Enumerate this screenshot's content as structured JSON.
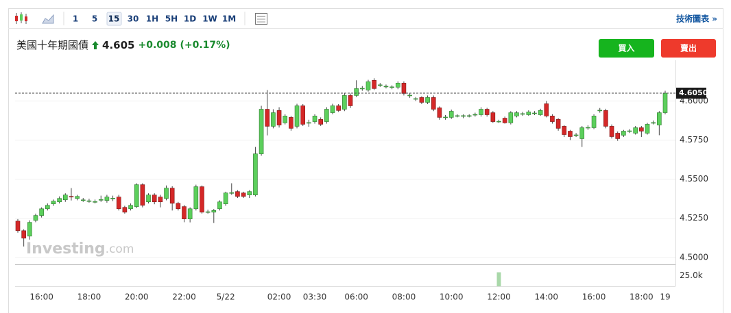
{
  "header": {
    "title": "美國十年期國債",
    "price": 4.605,
    "change": "+0.008",
    "change_pct": "(+0.17%)"
  },
  "toolbar": {
    "intervals": [
      "1",
      "5",
      "15",
      "30",
      "1H",
      "5H",
      "1D",
      "1W",
      "1M"
    ],
    "selected": 2,
    "link": "技術圖表 »"
  },
  "buttons": {
    "buy": "買入",
    "sell": "賣出"
  },
  "chart_data": {
    "type": "candlestick",
    "watermark": {
      "brand": "Investing",
      "suffix": ".com"
    },
    "categories": [
      null,
      null,
      null,
      null,
      "16:00",
      null,
      null,
      null,
      null,
      null,
      null,
      null,
      "18:00",
      null,
      null,
      null,
      null,
      null,
      null,
      null,
      "20:00",
      null,
      null,
      null,
      null,
      null,
      null,
      null,
      "22:00",
      null,
      null,
      null,
      null,
      null,
      null,
      "5/22",
      null,
      null,
      null,
      null,
      null,
      null,
      null,
      null,
      "02:00",
      null,
      null,
      null,
      null,
      null,
      "03:30",
      null,
      null,
      null,
      null,
      null,
      null,
      "06:00",
      null,
      null,
      null,
      null,
      null,
      null,
      null,
      "08:00",
      null,
      null,
      null,
      null,
      null,
      null,
      null,
      "10:00",
      null,
      null,
      null,
      null,
      null,
      null,
      null,
      "12:00",
      null,
      null,
      null,
      null,
      null,
      null,
      null,
      "14:00",
      null,
      null,
      null,
      null,
      null,
      null,
      null,
      "16:00",
      null,
      null,
      null,
      null,
      null,
      null,
      null,
      "18:00",
      null,
      null,
      null,
      "19"
    ],
    "open": [
      4.5232,
      4.5171,
      4.5136,
      4.5237,
      4.5268,
      4.5311,
      4.5342,
      4.5355,
      4.5368,
      4.539,
      4.5377,
      4.5364,
      4.536,
      4.5355,
      4.5368,
      4.5364,
      4.5377,
      4.5386,
      4.532,
      4.5311,
      4.5325,
      4.5465,
      4.5355,
      4.5399,
      4.5386,
      4.5377,
      4.5443,
      4.5346,
      4.5325,
      4.5246,
      4.5311,
      4.5452,
      4.5289,
      4.5289,
      4.5311,
      4.5342,
      4.5412,
      4.5421,
      4.5412,
      4.5399,
      4.5399,
      4.5662,
      4.5947,
      4.5838,
      4.5939,
      4.586,
      4.5895,
      4.5838,
      4.5969,
      4.586,
      4.5868,
      4.5882,
      4.5868,
      4.5925,
      4.5969,
      4.5947,
      4.6035,
      4.6035,
      4.6079,
      4.607,
      4.6132,
      4.6101,
      4.6092,
      4.6088,
      4.6088,
      4.6114,
      4.6035,
      4.6013,
      4.6022,
      4.5991,
      4.6022,
      4.5956,
      4.5895,
      4.5895,
      4.5904,
      4.5904,
      4.5904,
      4.5912,
      4.5912,
      4.5947,
      4.5925,
      4.5868,
      4.589,
      4.586,
      4.5904,
      4.5917,
      4.5912,
      4.5921,
      4.5912,
      4.5982,
      4.5904,
      4.5882,
      4.5838,
      4.5807,
      4.5781,
      4.5759,
      4.5829,
      4.5829,
      4.5939,
      4.5939,
      4.5838,
      4.5794,
      4.5781,
      4.5807,
      4.5794,
      4.5829,
      4.5794,
      4.586,
      4.5846,
      4.5925
    ],
    "high": [
      4.5245,
      4.518,
      4.5237,
      4.528,
      4.532,
      4.5345,
      4.537,
      4.539,
      4.541,
      4.5443,
      4.54,
      4.538,
      4.5375,
      4.537,
      4.5395,
      4.54,
      4.5395,
      4.54,
      4.533,
      4.5345,
      4.5474,
      4.5474,
      4.541,
      4.541,
      4.54,
      4.546,
      4.5455,
      4.5355,
      4.5335,
      4.532,
      4.5465,
      4.546,
      4.5305,
      4.531,
      4.5365,
      4.542,
      4.5474,
      4.543,
      4.542,
      4.543,
      4.5706,
      4.5969,
      4.607,
      4.5947,
      4.596,
      4.5915,
      4.5905,
      4.5982,
      4.598,
      4.588,
      4.5915,
      4.5895,
      4.596,
      4.5982,
      4.598,
      4.6048,
      4.6048,
      4.6132,
      4.6095,
      4.6135,
      4.6145,
      4.6115,
      4.6105,
      4.61,
      4.6125,
      4.6125,
      4.605,
      4.6025,
      4.603,
      4.6035,
      4.6035,
      4.5965,
      4.591,
      4.5945,
      4.5915,
      4.5915,
      4.5915,
      4.5925,
      4.596,
      4.5956,
      4.5935,
      4.588,
      4.59,
      4.5935,
      4.5935,
      4.593,
      4.594,
      4.5935,
      4.595,
      4.6,
      4.5915,
      4.589,
      4.5845,
      4.5815,
      4.5795,
      4.584,
      4.5845,
      4.5915,
      4.5955,
      4.595,
      4.585,
      4.5805,
      4.5815,
      4.582,
      4.584,
      4.584,
      4.586,
      4.5875,
      4.5935,
      4.6065
    ],
    "low": [
      4.5158,
      4.507,
      4.5114,
      4.5225,
      4.5255,
      4.53,
      4.533,
      4.5345,
      4.5355,
      4.5364,
      4.5365,
      4.5355,
      4.535,
      4.5345,
      4.5355,
      4.535,
      4.536,
      4.53,
      4.528,
      4.53,
      4.5315,
      4.532,
      4.5345,
      4.534,
      4.532,
      4.5365,
      4.53,
      4.53,
      4.5225,
      4.5224,
      4.53,
      4.528,
      4.528,
      4.522,
      4.53,
      4.533,
      4.54,
      4.538,
      4.538,
      4.538,
      4.539,
      4.565,
      4.578,
      4.5825,
      4.583,
      4.585,
      4.581,
      4.5825,
      4.584,
      4.5835,
      4.5855,
      4.584,
      4.5855,
      4.5915,
      4.593,
      4.5935,
      4.5955,
      4.6025,
      4.6065,
      4.606,
      4.607,
      4.609,
      4.608,
      4.6075,
      4.6075,
      4.6035,
      4.602,
      4.6,
      4.598,
      4.598,
      4.5935,
      4.588,
      4.588,
      4.5885,
      4.5895,
      4.589,
      4.5895,
      4.59,
      4.59,
      4.59,
      4.586,
      4.586,
      4.5855,
      4.585,
      4.5895,
      4.5905,
      4.5905,
      4.591,
      4.5905,
      4.5895,
      4.5855,
      4.581,
      4.577,
      4.575,
      4.577,
      4.5706,
      4.5815,
      4.582,
      4.5925,
      4.5825,
      4.576,
      4.5745,
      4.577,
      4.5795,
      4.5785,
      4.577,
      4.5785,
      4.585,
      4.5781,
      4.5915
    ],
    "close": [
      4.5171,
      4.5123,
      4.5224,
      4.5268,
      4.5311,
      4.5333,
      4.536,
      4.5377,
      4.5399,
      4.5386,
      4.539,
      4.5368,
      4.5362,
      4.5357,
      4.537,
      4.5386,
      4.5379,
      4.5311,
      4.5289,
      4.5333,
      4.5465,
      4.5333,
      4.5399,
      4.5355,
      4.5355,
      4.5443,
      4.5346,
      4.5311,
      4.5246,
      4.5311,
      4.5452,
      4.5289,
      4.5292,
      4.53,
      4.5355,
      4.5412,
      4.5414,
      4.539,
      4.539,
      4.5421,
      4.5662,
      4.5947,
      4.5838,
      4.5925,
      4.5846,
      4.5904,
      4.5825,
      4.5969,
      4.5851,
      4.5862,
      4.5904,
      4.5851,
      4.5947,
      4.5969,
      4.5939,
      4.6035,
      4.5969,
      4.6079,
      4.6081,
      4.6123,
      4.6079,
      4.6103,
      4.6094,
      4.609,
      4.6114,
      4.6048,
      4.6037,
      4.6015,
      4.5991,
      4.6022,
      4.5947,
      4.5895,
      4.5897,
      4.5934,
      4.5906,
      4.5906,
      4.5906,
      4.5914,
      4.5947,
      4.5912,
      4.5868,
      4.587,
      4.586,
      4.5925,
      4.5925,
      4.5919,
      4.593,
      4.5923,
      4.5939,
      4.5904,
      4.5868,
      4.5825,
      4.5785,
      4.5772,
      4.5783,
      4.5829,
      4.5831,
      4.5904,
      4.5941,
      4.5838,
      4.5772,
      4.5759,
      4.5807,
      4.5809,
      4.5829,
      4.5807,
      4.5851,
      4.5862,
      4.5925,
      4.605
    ],
    "up_color": "#5ccf5c",
    "down_color": "#d42828",
    "ylim": [
      4.496,
      4.626
    ],
    "yticks": [
      {
        "value": 4.5,
        "label": "4.5000"
      },
      {
        "value": 4.525,
        "label": "4.5250"
      },
      {
        "value": 4.55,
        "label": "4.5500"
      },
      {
        "value": 4.575,
        "label": "4.5750"
      },
      {
        "value": 4.6,
        "label": "4.6000"
      }
    ],
    "grid": true,
    "last_price": {
      "value": 4.605,
      "label": "4.6050"
    },
    "volume": {
      "color": "#a9d8a9",
      "ylim": [
        0,
        50000
      ],
      "yticks": [
        {
          "value": 25000,
          "label": "25.0k"
        }
      ],
      "values": [
        null,
        null,
        null,
        null,
        null,
        null,
        null,
        null,
        null,
        null,
        null,
        null,
        null,
        null,
        null,
        null,
        null,
        null,
        null,
        null,
        null,
        null,
        null,
        null,
        null,
        null,
        null,
        null,
        null,
        null,
        null,
        null,
        null,
        null,
        null,
        null,
        null,
        null,
        null,
        null,
        null,
        null,
        null,
        null,
        null,
        null,
        null,
        null,
        null,
        null,
        null,
        null,
        null,
        null,
        null,
        null,
        null,
        null,
        null,
        null,
        null,
        null,
        null,
        null,
        null,
        null,
        null,
        null,
        null,
        null,
        null,
        null,
        null,
        null,
        null,
        null,
        null,
        null,
        null,
        null,
        null,
        33000,
        null,
        null,
        null,
        null,
        null,
        null,
        null,
        null,
        null,
        null,
        null,
        null,
        null,
        null,
        null,
        null,
        null,
        null,
        null,
        null,
        null,
        null,
        null,
        null,
        null,
        null,
        null,
        null
      ]
    }
  }
}
